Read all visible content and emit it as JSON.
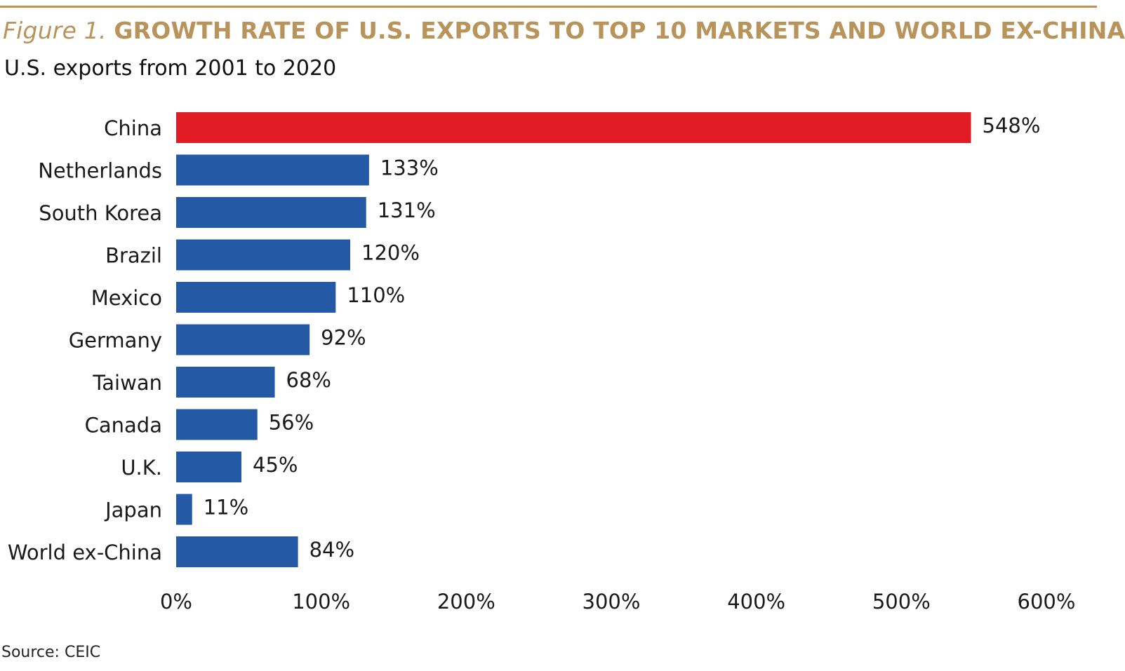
{
  "figure": {
    "label": "Figure 1.",
    "title": "GROWTH RATE OF U.S. EXPORTS TO TOP 10 MARKETS AND WORLD EX-CHINA",
    "subtitle": "U.S. exports from 2001 to 2020",
    "source": "Source: CEIC",
    "accent_color": "#b8935a"
  },
  "chart_data": {
    "type": "bar",
    "orientation": "horizontal",
    "title": "GROWTH RATE OF U.S. EXPORTS TO TOP 10 MARKETS AND WORLD EX-CHINA",
    "subtitle": "U.S. exports from 2001 to 2020",
    "categories": [
      "China",
      "Netherlands",
      "South Korea",
      "Brazil",
      "Mexico",
      "Germany",
      "Taiwan",
      "Canada",
      "U.K.",
      "Japan",
      "World ex-China"
    ],
    "values": [
      548,
      133,
      131,
      120,
      110,
      92,
      68,
      56,
      45,
      11,
      84
    ],
    "value_labels": [
      "548%",
      "133%",
      "131%",
      "120%",
      "110%",
      "92%",
      "68%",
      "56%",
      "45%",
      "11%",
      "84%"
    ],
    "bar_colors": [
      "#e21c24",
      "#2459a6",
      "#2459a6",
      "#2459a6",
      "#2459a6",
      "#2459a6",
      "#2459a6",
      "#2459a6",
      "#2459a6",
      "#2459a6",
      "#2459a6"
    ],
    "xlim": [
      0,
      600
    ],
    "x_ticks": [
      0,
      100,
      200,
      300,
      400,
      500,
      600
    ],
    "x_tick_labels": [
      "0%",
      "100%",
      "200%",
      "300%",
      "400%",
      "500%",
      "600%"
    ],
    "xlabel": "",
    "ylabel": "",
    "grid": false,
    "legend": "none"
  }
}
